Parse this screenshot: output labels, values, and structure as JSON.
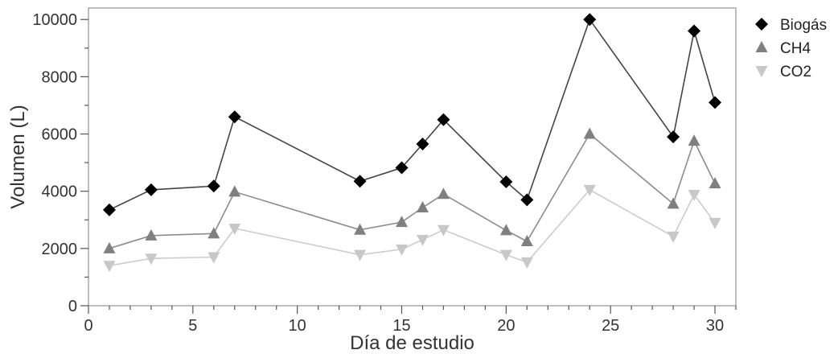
{
  "chart_data": {
    "type": "line",
    "title": "",
    "xlabel": "Día de estudio",
    "ylabel": "Volumen (L)",
    "xlim": [
      0,
      31
    ],
    "ylim": [
      0,
      10400
    ],
    "x_ticks": [
      0,
      5,
      10,
      15,
      20,
      25,
      30
    ],
    "x_tick_labels": [
      "0",
      "5",
      "10",
      "15",
      "20",
      "25",
      "30"
    ],
    "y_ticks": [
      0,
      2000,
      4000,
      6000,
      8000,
      10000
    ],
    "y_tick_labels": [
      "0",
      "2000",
      "4000",
      "6000",
      "8000",
      "10000"
    ],
    "grid": false,
    "legend_position": "right",
    "x": [
      1,
      3,
      6,
      7,
      13,
      15,
      16,
      17,
      20,
      21,
      24,
      28,
      29,
      30
    ],
    "series": [
      {
        "name": "Biogás",
        "marker": "diamond",
        "color": "#000000",
        "line_color": "#444444",
        "values": [
          3350,
          4050,
          4180,
          6600,
          4350,
          4820,
          5650,
          6500,
          4330,
          3700,
          10000,
          5900,
          9600,
          7100
        ]
      },
      {
        "name": "CH4",
        "marker": "triangle-up",
        "color": "#808080",
        "line_color": "#8c8c8c",
        "values": [
          2000,
          2450,
          2520,
          3980,
          2650,
          2920,
          3430,
          3900,
          2630,
          2250,
          6000,
          3560,
          5760,
          4270
        ]
      },
      {
        "name": "CO2",
        "marker": "triangle-down",
        "color": "#c8c8c8",
        "line_color": "#cccccc",
        "values": [
          1400,
          1650,
          1700,
          2700,
          1780,
          1970,
          2310,
          2650,
          1780,
          1520,
          4050,
          2420,
          3880,
          2900
        ]
      }
    ]
  }
}
